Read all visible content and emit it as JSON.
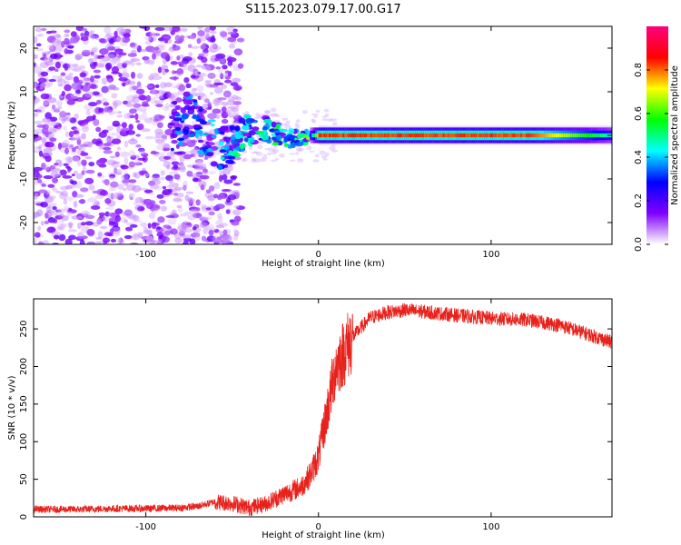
{
  "figure": {
    "title": "S115.2023.079.17.00.G17"
  },
  "chart_data": [
    {
      "type": "heatmap",
      "xlabel": "Height of straight line (km)",
      "ylabel": "Frequency (Hz)",
      "xlim": [
        -165,
        170
      ],
      "ylim": [
        -25,
        25
      ],
      "xticks": [
        -100,
        0,
        100
      ],
      "yticks": [
        -20,
        -10,
        0,
        10,
        20
      ],
      "grid": false,
      "colorbar": {
        "label": "Normalized spectral amplitude",
        "range": [
          0,
          1
        ],
        "ticks": [
          "0.0",
          "0.2",
          "0.4",
          "0.6",
          "0.8"
        ],
        "colors": [
          "#ffffff",
          "#8000ff",
          "#0000ff",
          "#00ffff",
          "#00ff00",
          "#ffff00",
          "#ff0000",
          "#ff0080"
        ]
      },
      "features": {
        "noise_region_x": [
          -165,
          -45
        ],
        "transition_x": [
          -85,
          5
        ],
        "tone_frequency_hz": 0,
        "tone_peak_x_range": [
          0,
          120
        ],
        "tone_peak_amplitude": 0.85,
        "tone_tail_amplitude": 0.45
      }
    },
    {
      "type": "line",
      "xlabel": "Height of straight line (km)",
      "ylabel": "SNR (10 * v/v)",
      "xlim": [
        -165,
        170
      ],
      "ylim": [
        0,
        290
      ],
      "xticks": [
        -100,
        0,
        100
      ],
      "yticks": [
        0,
        50,
        100,
        150,
        200,
        250
      ],
      "grid": false,
      "series": [
        {
          "color": "#e8211b",
          "x": [
            -165,
            -140,
            -120,
            -100,
            -80,
            -70,
            -60,
            -50,
            -40,
            -30,
            -20,
            -10,
            -5,
            0,
            5,
            10,
            20,
            30,
            40,
            50,
            60,
            80,
            100,
            120,
            140,
            160,
            170
          ],
          "y": [
            10,
            10,
            11,
            11,
            12,
            14,
            20,
            18,
            12,
            18,
            30,
            40,
            55,
            80,
            140,
            200,
            240,
            265,
            272,
            275,
            273,
            268,
            264,
            262,
            255,
            240,
            232
          ]
        }
      ]
    }
  ]
}
